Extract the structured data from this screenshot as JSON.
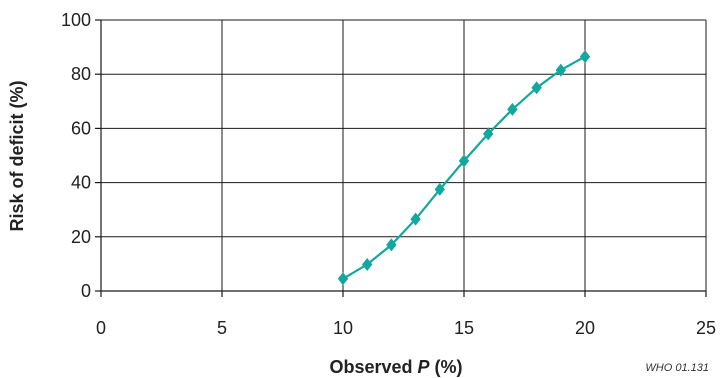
{
  "chart_data": {
    "type": "line",
    "title": "",
    "xlabel": {
      "prefix": "Observed ",
      "variable": "P",
      "suffix": " (%)"
    },
    "ylabel": "Risk of deficit (%)",
    "xlim": [
      0,
      25
    ],
    "ylim": [
      0,
      100
    ],
    "xticks": [
      0,
      5,
      10,
      15,
      20,
      25
    ],
    "yticks": [
      0,
      20,
      40,
      60,
      80,
      100
    ],
    "grid": true,
    "marker": "diamond",
    "series": [
      {
        "x": [
          10,
          11,
          12,
          13,
          14,
          15,
          16,
          17,
          18,
          19,
          20
        ],
        "y": [
          4.5,
          9.8,
          17,
          26.5,
          37.5,
          48,
          58,
          67,
          75,
          81.5,
          86.5
        ]
      }
    ],
    "colors": {
      "series": "#13a89e",
      "grid": "#1a1a1a"
    },
    "credit": "WHO 01.131"
  }
}
